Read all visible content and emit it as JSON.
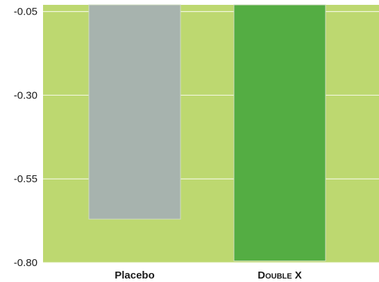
{
  "chart_data": {
    "type": "bar",
    "categories": [
      "Placebo",
      "Double X"
    ],
    "values": [
      -0.67,
      -0.795
    ],
    "ylim": [
      -0.8,
      -0.03
    ],
    "yticks": [
      -0.05,
      -0.3,
      -0.55,
      -0.8
    ],
    "ytick_labels": [
      "-0.05",
      "-0.30",
      "-0.55",
      "-0.80"
    ],
    "grid": true,
    "title": "",
    "xlabel": "",
    "ylabel": ""
  },
  "colors": {
    "plot_background": "#bdd870",
    "gridline": "#f2f7df",
    "bar_placebo": "#a7b3ae",
    "bar_double_x": "#54ad43",
    "bar_edge": "#cfdcc0",
    "axis_text": "#1a1a1a"
  }
}
